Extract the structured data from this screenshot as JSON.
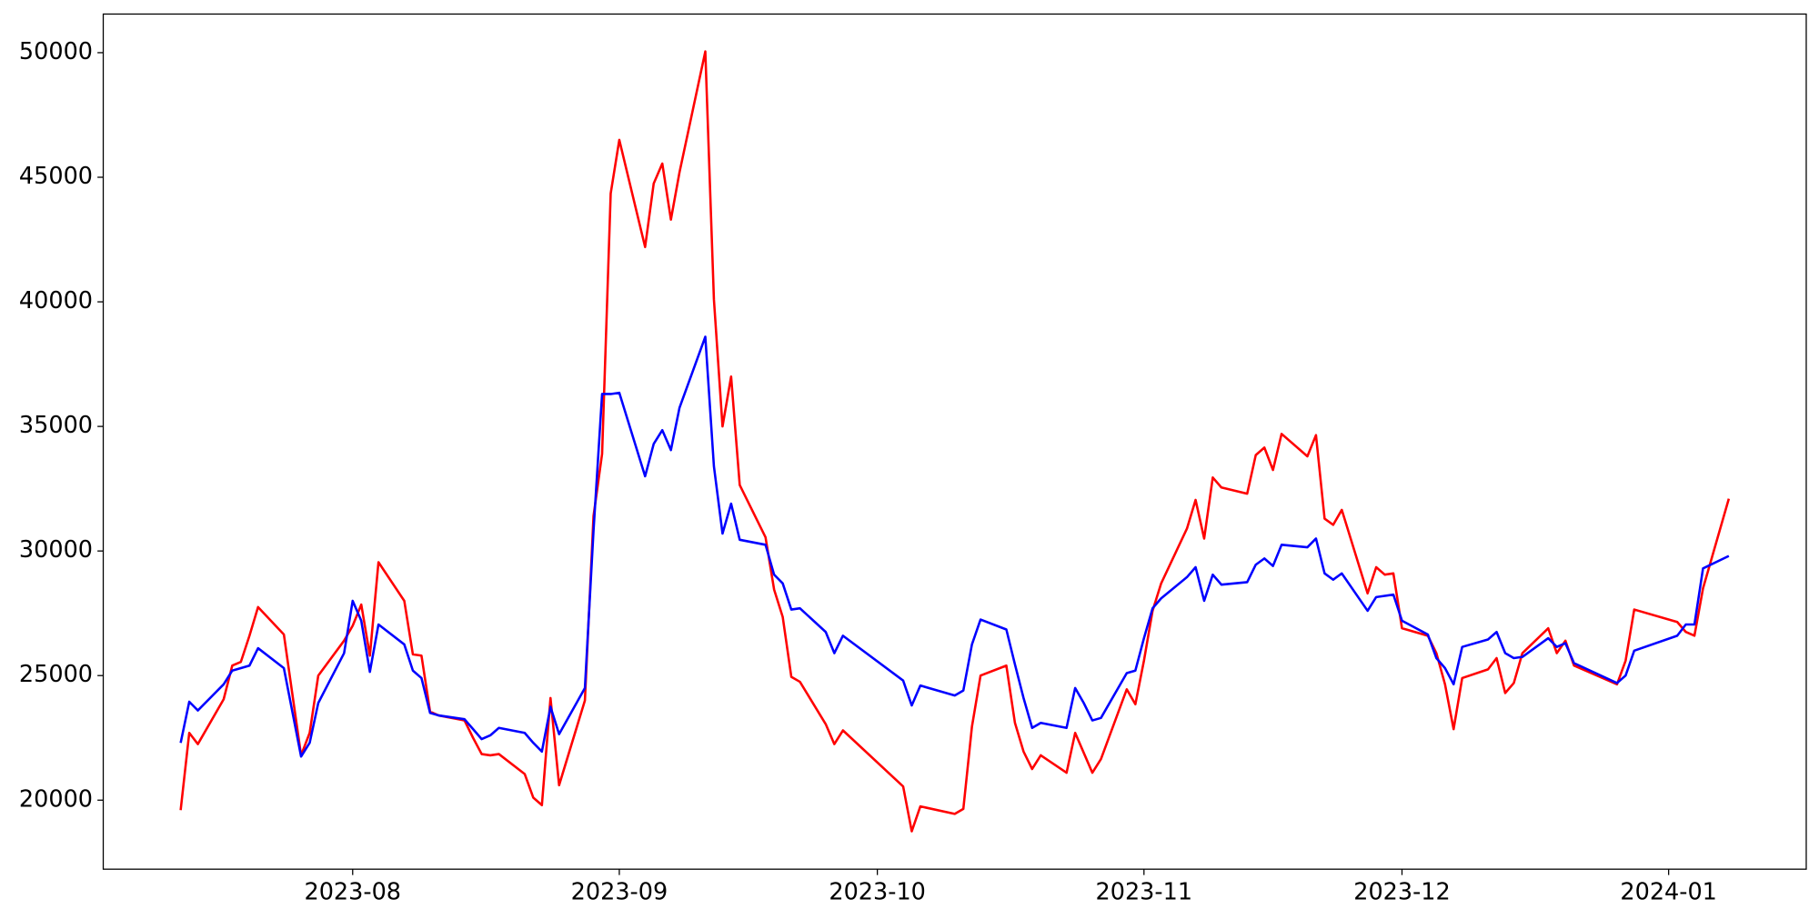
{
  "chart_data": {
    "type": "line",
    "x": [
      "2023-07-12",
      "2023-07-13",
      "2023-07-14",
      "2023-07-17",
      "2023-07-18",
      "2023-07-19",
      "2023-07-20",
      "2023-07-21",
      "2023-07-24",
      "2023-07-26",
      "2023-07-27",
      "2023-07-28",
      "2023-07-31",
      "2023-08-01",
      "2023-08-02",
      "2023-08-03",
      "2023-08-04",
      "2023-08-07",
      "2023-08-08",
      "2023-08-09",
      "2023-08-10",
      "2023-08-11",
      "2023-08-14",
      "2023-08-15",
      "2023-08-16",
      "2023-08-17",
      "2023-08-18",
      "2023-08-21",
      "2023-08-22",
      "2023-08-23",
      "2023-08-24",
      "2023-08-25",
      "2023-08-28",
      "2023-08-29",
      "2023-08-30",
      "2023-08-31",
      "2023-09-01",
      "2023-09-04",
      "2023-09-05",
      "2023-09-06",
      "2023-09-07",
      "2023-09-08",
      "2023-09-11",
      "2023-09-12",
      "2023-09-13",
      "2023-09-14",
      "2023-09-15",
      "2023-09-18",
      "2023-09-19",
      "2023-09-20",
      "2023-09-21",
      "2023-09-22",
      "2023-09-25",
      "2023-09-26",
      "2023-09-27",
      "2023-10-04",
      "2023-10-05",
      "2023-10-06",
      "2023-10-10",
      "2023-10-11",
      "2023-10-12",
      "2023-10-13",
      "2023-10-16",
      "2023-10-17",
      "2023-10-18",
      "2023-10-19",
      "2023-10-20",
      "2023-10-23",
      "2023-10-24",
      "2023-10-25",
      "2023-10-26",
      "2023-10-27",
      "2023-10-30",
      "2023-10-31",
      "2023-11-01",
      "2023-11-02",
      "2023-11-03",
      "2023-11-06",
      "2023-11-07",
      "2023-11-08",
      "2023-11-09",
      "2023-11-10",
      "2023-11-13",
      "2023-11-14",
      "2023-11-15",
      "2023-11-16",
      "2023-11-17",
      "2023-11-20",
      "2023-11-21",
      "2023-11-22",
      "2023-11-23",
      "2023-11-24",
      "2023-11-27",
      "2023-11-28",
      "2023-11-29",
      "2023-11-30",
      "2023-12-01",
      "2023-12-04",
      "2023-12-05",
      "2023-12-06",
      "2023-12-07",
      "2023-12-08",
      "2023-12-11",
      "2023-12-12",
      "2023-12-13",
      "2023-12-14",
      "2023-12-15",
      "2023-12-18",
      "2023-12-19",
      "2023-12-20",
      "2023-12-21",
      "2023-12-26",
      "2023-12-27",
      "2023-12-28",
      "2024-01-02",
      "2024-01-03",
      "2024-01-04",
      "2024-01-05",
      "2024-01-08"
    ],
    "series": [
      {
        "color": "#ff0000",
        "values": [
          19600,
          22700,
          22250,
          24050,
          25400,
          25550,
          26600,
          27750,
          26650,
          21800,
          22700,
          25000,
          26400,
          27000,
          27850,
          25800,
          29550,
          28000,
          25850,
          25800,
          23550,
          23400,
          23200,
          22500,
          21850,
          21800,
          21850,
          21050,
          20100,
          19800,
          24100,
          20600,
          24000,
          31400,
          33900,
          44350,
          46500,
          42200,
          44750,
          45550,
          43300,
          45200,
          50050,
          40100,
          35000,
          37000,
          32650,
          30550,
          28450,
          27350,
          24950,
          24750,
          23050,
          22250,
          22800,
          20550,
          18750,
          19750,
          19450,
          19650,
          22950,
          25000,
          25400,
          23100,
          21950,
          21250,
          21800,
          21100,
          22700,
          21900,
          21100,
          21650,
          24450,
          23850,
          25600,
          27600,
          28700,
          30900,
          32050,
          30500,
          32950,
          32550,
          32300,
          33850,
          34150,
          33250,
          34700,
          33800,
          34650,
          31300,
          31050,
          31650,
          28300,
          29350,
          29050,
          29100,
          26900,
          26600,
          25900,
          24650,
          22850,
          24900,
          25250,
          25700,
          24300,
          24700,
          25900,
          26900,
          25900,
          26400,
          25400,
          24650,
          25600,
          27650,
          27150,
          26750,
          26600,
          28500,
          32100
        ]
      },
      {
        "color": "#0000ff",
        "values": [
          22300,
          23950,
          23600,
          24650,
          25200,
          25300,
          25400,
          26100,
          25300,
          21750,
          22300,
          23900,
          25900,
          28000,
          27200,
          25150,
          27050,
          26250,
          25200,
          24900,
          23500,
          23400,
          23250,
          22850,
          22450,
          22600,
          22900,
          22700,
          22300,
          21950,
          23750,
          22650,
          24500,
          30800,
          36300,
          36300,
          36350,
          33000,
          34300,
          34850,
          34050,
          35750,
          38600,
          33400,
          30700,
          31900,
          30450,
          30250,
          29050,
          28700,
          27650,
          27700,
          26750,
          25900,
          26600,
          24800,
          23800,
          24600,
          24200,
          24400,
          26250,
          27250,
          26850,
          25450,
          24100,
          22900,
          23100,
          22900,
          24500,
          23900,
          23200,
          23300,
          25100,
          25200,
          26500,
          27700,
          28100,
          28950,
          29350,
          28000,
          29050,
          28650,
          28750,
          29450,
          29700,
          29400,
          30250,
          30150,
          30500,
          29100,
          28850,
          29100,
          27600,
          28150,
          28200,
          28250,
          27200,
          26650,
          25700,
          25300,
          24650,
          26150,
          26450,
          26750,
          25900,
          25700,
          25750,
          26500,
          26150,
          26300,
          25500,
          24700,
          25000,
          26000,
          26600,
          27050,
          27050,
          29300,
          29800
        ]
      }
    ],
    "xlim": [
      "2023-07-03",
      "2024-01-17"
    ],
    "xticks": [
      {
        "value": "2023-08-01",
        "label": "2023-08"
      },
      {
        "value": "2023-09-01",
        "label": "2023-09"
      },
      {
        "value": "2023-10-01",
        "label": "2023-10"
      },
      {
        "value": "2023-11-01",
        "label": "2023-11"
      },
      {
        "value": "2023-12-01",
        "label": "2023-12"
      },
      {
        "value": "2024-01-01",
        "label": "2024-01"
      }
    ],
    "ylim": [
      17230,
      51550
    ],
    "yticks": [
      20000,
      25000,
      30000,
      35000,
      40000,
      45000,
      50000
    ],
    "grid": false
  }
}
